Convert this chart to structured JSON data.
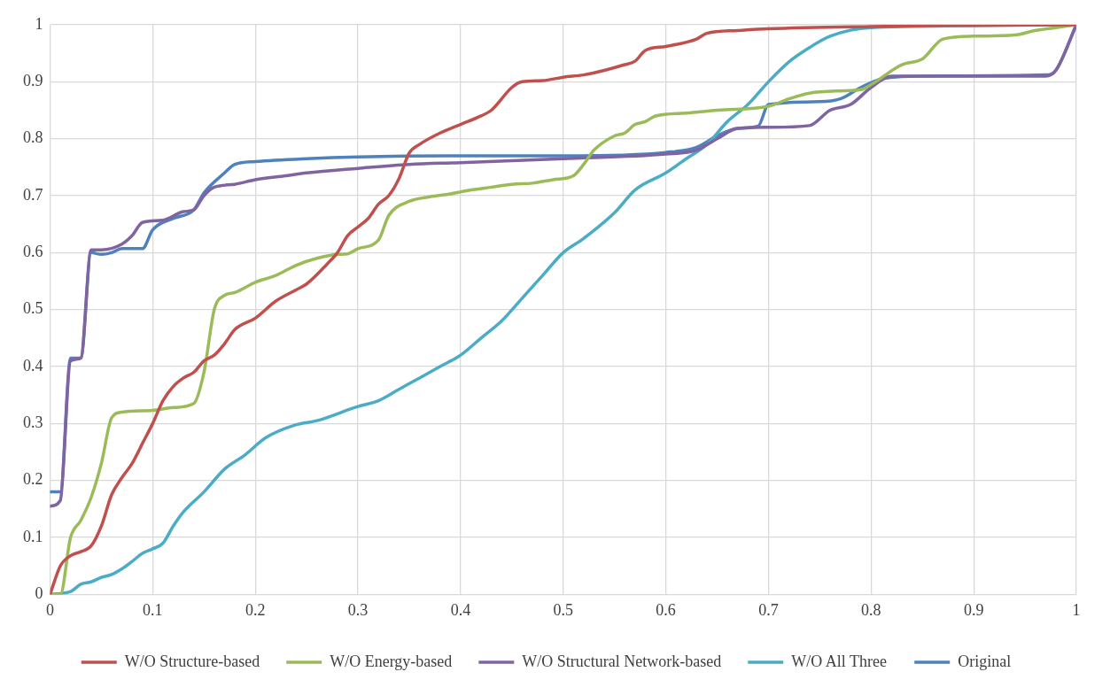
{
  "chart_data": {
    "type": "line",
    "xlim": [
      0,
      1
    ],
    "xticks": [
      0,
      0.1,
      0.2,
      0.3,
      0.4,
      0.5,
      0.6,
      0.7,
      0.8,
      0.9,
      1
    ],
    "ylim": [
      0,
      1
    ],
    "yticks": [
      0,
      0.1,
      0.2,
      0.3,
      0.4,
      0.5,
      0.6,
      0.7,
      0.8,
      0.9,
      1
    ],
    "grid": true,
    "legend": "bottom",
    "marker": "none",
    "line_style": "solid",
    "series": [
      {
        "name": "W/O Structure-based",
        "color": "#c0504d",
        "x": [
          0,
          0.01,
          0.02,
          0.03,
          0.04,
          0.05,
          0.06,
          0.07,
          0.08,
          0.09,
          0.1,
          0.11,
          0.12,
          0.13,
          0.14,
          0.15,
          0.16,
          0.17,
          0.18,
          0.2,
          0.22,
          0.24,
          0.25,
          0.27,
          0.28,
          0.29,
          0.3,
          0.31,
          0.32,
          0.33,
          0.34,
          0.35,
          0.36,
          0.38,
          0.4,
          0.42,
          0.43,
          0.45,
          0.46,
          0.48,
          0.5,
          0.52,
          0.54,
          0.56,
          0.57,
          0.58,
          0.6,
          0.63,
          0.64,
          0.67,
          0.7,
          0.8,
          0.9,
          1
        ],
        "values": [
          0,
          0.05,
          0.068,
          0.075,
          0.085,
          0.12,
          0.175,
          0.205,
          0.23,
          0.265,
          0.3,
          0.34,
          0.365,
          0.38,
          0.39,
          0.41,
          0.42,
          0.44,
          0.465,
          0.485,
          0.515,
          0.535,
          0.545,
          0.58,
          0.6,
          0.63,
          0.645,
          0.66,
          0.685,
          0.7,
          0.73,
          0.775,
          0.79,
          0.81,
          0.825,
          0.84,
          0.85,
          0.89,
          0.9,
          0.902,
          0.908,
          0.912,
          0.92,
          0.93,
          0.936,
          0.955,
          0.962,
          0.975,
          0.985,
          0.99,
          0.993,
          0.997,
          0.999,
          1
        ]
      },
      {
        "name": "W/O Energy-based",
        "color": "#9bbb59",
        "x": [
          0,
          0.01,
          0.02,
          0.03,
          0.04,
          0.05,
          0.06,
          0.07,
          0.1,
          0.12,
          0.14,
          0.15,
          0.16,
          0.17,
          0.18,
          0.2,
          0.22,
          0.24,
          0.26,
          0.28,
          0.29,
          0.3,
          0.32,
          0.33,
          0.35,
          0.37,
          0.39,
          0.41,
          0.43,
          0.45,
          0.47,
          0.49,
          0.51,
          0.52,
          0.53,
          0.55,
          0.56,
          0.57,
          0.58,
          0.59,
          0.62,
          0.65,
          0.7,
          0.72,
          0.74,
          0.77,
          0.79,
          0.8,
          0.83,
          0.85,
          0.87,
          0.9,
          0.94,
          0.96,
          0.98,
          1
        ],
        "values": [
          0,
          0,
          0.1,
          0.13,
          0.17,
          0.23,
          0.31,
          0.32,
          0.323,
          0.328,
          0.335,
          0.39,
          0.5,
          0.525,
          0.53,
          0.548,
          0.56,
          0.578,
          0.59,
          0.597,
          0.598,
          0.607,
          0.622,
          0.665,
          0.69,
          0.698,
          0.703,
          0.71,
          0.715,
          0.72,
          0.722,
          0.728,
          0.735,
          0.755,
          0.78,
          0.805,
          0.81,
          0.825,
          0.83,
          0.84,
          0.845,
          0.85,
          0.857,
          0.87,
          0.88,
          0.884,
          0.886,
          0.895,
          0.93,
          0.94,
          0.975,
          0.98,
          0.982,
          0.99,
          0.995,
          1
        ]
      },
      {
        "name": "W/O Structural Network-based",
        "color": "#8064a2",
        "x": [
          0,
          0.01,
          0.02,
          0.03,
          0.04,
          0.05,
          0.07,
          0.08,
          0.09,
          0.11,
          0.13,
          0.14,
          0.15,
          0.16,
          0.18,
          0.2,
          0.23,
          0.25,
          0.3,
          0.35,
          0.4,
          0.5,
          0.6,
          0.63,
          0.65,
          0.67,
          0.7,
          0.74,
          0.76,
          0.78,
          0.8,
          0.82,
          0.9,
          0.97,
          0.98,
          1
        ],
        "values": [
          0.155,
          0.165,
          0.41,
          0.415,
          0.605,
          0.605,
          0.615,
          0.63,
          0.653,
          0.657,
          0.672,
          0.675,
          0.7,
          0.715,
          0.72,
          0.728,
          0.735,
          0.74,
          0.748,
          0.755,
          0.758,
          0.765,
          0.773,
          0.78,
          0.8,
          0.818,
          0.82,
          0.823,
          0.85,
          0.86,
          0.89,
          0.91,
          0.91,
          0.91,
          0.92,
          1
        ]
      },
      {
        "name": "W/O All Three",
        "color": "#4bacc6",
        "x": [
          0,
          0.02,
          0.03,
          0.04,
          0.05,
          0.06,
          0.07,
          0.08,
          0.09,
          0.1,
          0.11,
          0.12,
          0.13,
          0.15,
          0.17,
          0.19,
          0.21,
          0.24,
          0.26,
          0.3,
          0.32,
          0.34,
          0.36,
          0.37,
          0.38,
          0.4,
          0.42,
          0.44,
          0.46,
          0.48,
          0.5,
          0.52,
          0.55,
          0.57,
          0.6,
          0.62,
          0.64,
          0.66,
          0.68,
          0.7,
          0.72,
          0.74,
          0.76,
          0.8,
          1
        ],
        "values": [
          0,
          0.005,
          0.018,
          0.022,
          0.03,
          0.035,
          0.045,
          0.058,
          0.072,
          0.08,
          0.09,
          0.12,
          0.145,
          0.18,
          0.22,
          0.245,
          0.275,
          0.298,
          0.305,
          0.33,
          0.34,
          0.36,
          0.38,
          0.39,
          0.4,
          0.42,
          0.45,
          0.48,
          0.52,
          0.56,
          0.6,
          0.625,
          0.67,
          0.71,
          0.74,
          0.765,
          0.79,
          0.83,
          0.86,
          0.9,
          0.935,
          0.96,
          0.98,
          0.995,
          1
        ]
      },
      {
        "name": "Original",
        "color": "#4f81bd",
        "x": [
          0,
          0.01,
          0.02,
          0.03,
          0.04,
          0.05,
          0.06,
          0.07,
          0.09,
          0.1,
          0.12,
          0.14,
          0.15,
          0.17,
          0.18,
          0.2,
          0.25,
          0.3,
          0.4,
          0.5,
          0.6,
          0.63,
          0.65,
          0.67,
          0.69,
          0.7,
          0.75,
          0.77,
          0.79,
          0.81,
          0.85,
          0.97,
          0.98,
          1
        ],
        "values": [
          0.18,
          0.18,
          0.415,
          0.415,
          0.6,
          0.597,
          0.6,
          0.607,
          0.607,
          0.64,
          0.66,
          0.675,
          0.705,
          0.74,
          0.755,
          0.76,
          0.765,
          0.768,
          0.77,
          0.77,
          0.776,
          0.785,
          0.805,
          0.818,
          0.822,
          0.86,
          0.865,
          0.87,
          0.89,
          0.905,
          0.91,
          0.912,
          0.92,
          1
        ]
      }
    ]
  }
}
